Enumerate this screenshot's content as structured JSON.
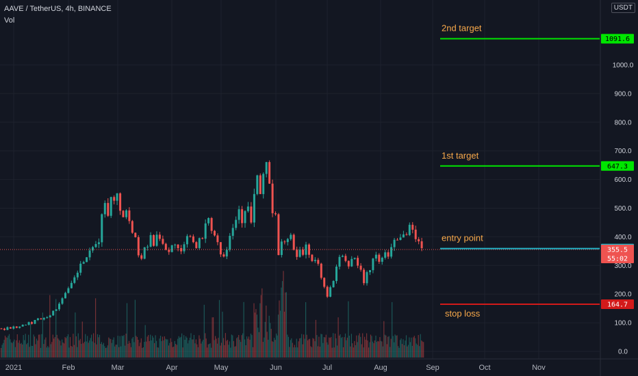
{
  "header": {
    "symbol": "AAVE / TetherUS, 4h, BINANCE",
    "volume_label": "Vol"
  },
  "currency": "USDT",
  "colors": {
    "background": "#131722",
    "grid": "#1e222d",
    "up": "#26a69a",
    "down": "#ef5350",
    "target": "#00e600",
    "entry": "#22b5c9",
    "stop": "#d31a1a",
    "annotation": "#f7a84a",
    "current": "#ef5350"
  },
  "chart_data": {
    "type": "candlestick",
    "y_ticks": [
      "0.0",
      "100.0",
      "200.0",
      "300.0",
      "400.0",
      "500.0",
      "600.0",
      "700.0",
      "800.0",
      "900.0",
      "1000.0"
    ],
    "x_ticks": [
      "2021",
      "Feb",
      "Mar",
      "Apr",
      "May",
      "Jun",
      "Jul",
      "Aug",
      "Sep",
      "Oct",
      "Nov"
    ],
    "ylim": [
      0,
      1150
    ],
    "price_path": [
      [
        0,
        80
      ],
      [
        4,
        84
      ],
      [
        8,
        92
      ],
      [
        12,
        112
      ],
      [
        16,
        128
      ],
      [
        18,
        148
      ],
      [
        20,
        190
      ],
      [
        22,
        215
      ],
      [
        24,
        255
      ],
      [
        26,
        300
      ],
      [
        28,
        330
      ],
      [
        30,
        355
      ],
      [
        32,
        390
      ],
      [
        33,
        470
      ],
      [
        34,
        520
      ],
      [
        35,
        480
      ],
      [
        36,
        555
      ],
      [
        37,
        520
      ],
      [
        38,
        545
      ],
      [
        39,
        500
      ],
      [
        40,
        470
      ],
      [
        41,
        500
      ],
      [
        42,
        450
      ],
      [
        43,
        420
      ],
      [
        44,
        395
      ],
      [
        45,
        345
      ],
      [
        46,
        330
      ],
      [
        47,
        370
      ],
      [
        48,
        360
      ],
      [
        49,
        400
      ],
      [
        50,
        375
      ],
      [
        51,
        410
      ],
      [
        52,
        395
      ],
      [
        53,
        385
      ],
      [
        54,
        360
      ],
      [
        55,
        345
      ],
      [
        56,
        365
      ],
      [
        57,
        380
      ],
      [
        58,
        355
      ],
      [
        59,
        340
      ],
      [
        60,
        370
      ],
      [
        61,
        395
      ],
      [
        62,
        410
      ],
      [
        63,
        385
      ],
      [
        64,
        370
      ],
      [
        65,
        390
      ],
      [
        66,
        385
      ],
      [
        67,
        435
      ],
      [
        68,
        470
      ],
      [
        69,
        430
      ],
      [
        70,
        405
      ],
      [
        71,
        385
      ],
      [
        72,
        340
      ],
      [
        73,
        340
      ],
      [
        74,
        365
      ],
      [
        75,
        410
      ],
      [
        76,
        440
      ],
      [
        77,
        465
      ],
      [
        78,
        495
      ],
      [
        79,
        460
      ],
      [
        80,
        480
      ],
      [
        81,
        500
      ],
      [
        82,
        455
      ],
      [
        83,
        545
      ],
      [
        84,
        610
      ],
      [
        85,
        535
      ],
      [
        86,
        620
      ],
      [
        87,
        670
      ],
      [
        88,
        585
      ],
      [
        89,
        485
      ],
      [
        90,
        470
      ],
      [
        91,
        330
      ],
      [
        92,
        390
      ],
      [
        93,
        375
      ],
      [
        94,
        400
      ],
      [
        95,
        405
      ],
      [
        96,
        345
      ],
      [
        97,
        330
      ],
      [
        98,
        355
      ],
      [
        99,
        335
      ],
      [
        100,
        380
      ],
      [
        101,
        340
      ],
      [
        102,
        310
      ],
      [
        103,
        320
      ],
      [
        104,
        300
      ],
      [
        105,
        255
      ],
      [
        106,
        230
      ],
      [
        107,
        195
      ],
      [
        108,
        220
      ],
      [
        109,
        245
      ],
      [
        110,
        290
      ],
      [
        111,
        330
      ],
      [
        112,
        325
      ],
      [
        113,
        310
      ],
      [
        114,
        300
      ],
      [
        115,
        325
      ],
      [
        116,
        325
      ],
      [
        117,
        300
      ],
      [
        118,
        285
      ],
      [
        119,
        240
      ],
      [
        120,
        270
      ],
      [
        121,
        290
      ],
      [
        122,
        320
      ],
      [
        123,
        330
      ],
      [
        124,
        320
      ],
      [
        125,
        320
      ],
      [
        126,
        345
      ],
      [
        127,
        335
      ],
      [
        128,
        365
      ],
      [
        129,
        400
      ],
      [
        130,
        395
      ],
      [
        131,
        395
      ],
      [
        132,
        420
      ],
      [
        133,
        405
      ],
      [
        134,
        440
      ],
      [
        135,
        420
      ],
      [
        136,
        400
      ],
      [
        137,
        390
      ],
      [
        138,
        355
      ]
    ],
    "last_index": 138,
    "levels": [
      {
        "name": "2nd target",
        "price": 1091.6,
        "label": "1091.6",
        "role": "target"
      },
      {
        "name": "1st target",
        "price": 647.3,
        "label": "647.3",
        "role": "target"
      },
      {
        "name": "entry point",
        "price": 358.9,
        "label": "358.9",
        "role": "entry"
      },
      {
        "name": "stop loss",
        "price": 164.7,
        "label": "164.7",
        "role": "stop"
      }
    ],
    "current_price": {
      "price": 355.5,
      "label": "355.5",
      "countdown": "55:02"
    }
  }
}
